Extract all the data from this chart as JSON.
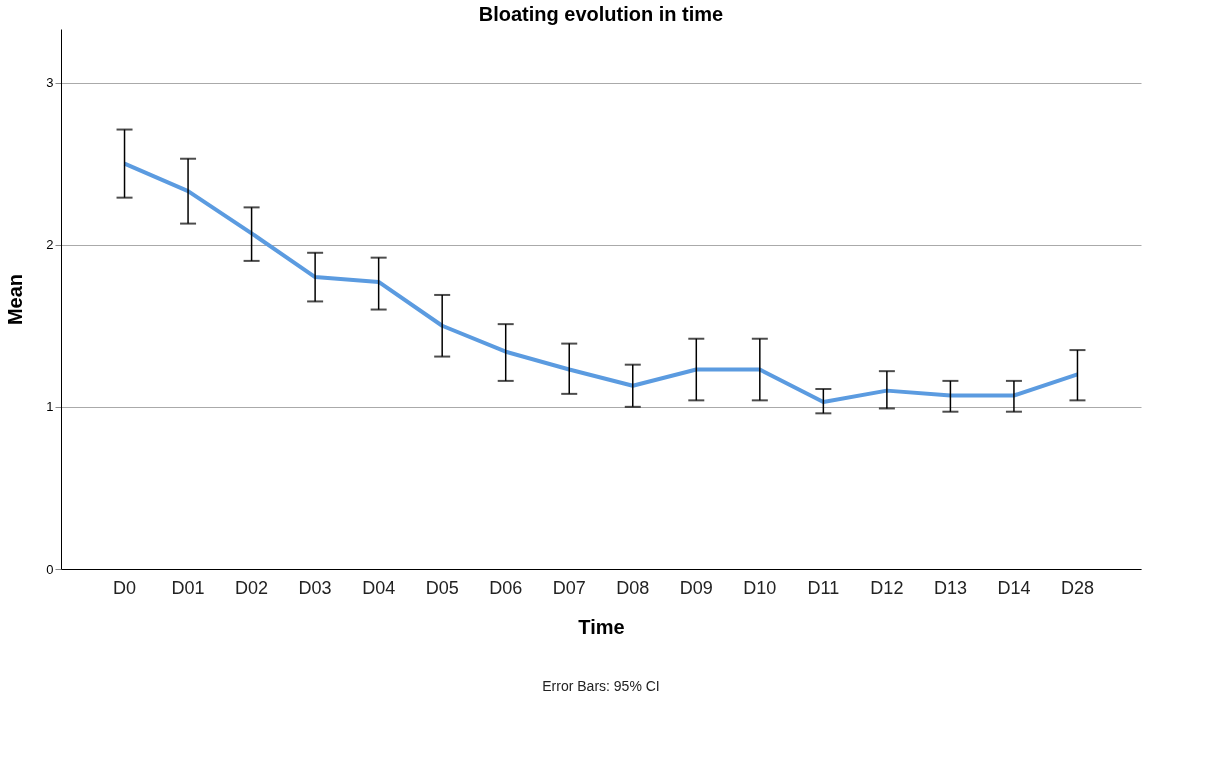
{
  "chart_data": {
    "type": "line",
    "title": "Bloating evolution in time",
    "xlabel": "Time",
    "ylabel": "Mean",
    "categories": [
      "D0",
      "D01",
      "D02",
      "D03",
      "D04",
      "D05",
      "D06",
      "D07",
      "D08",
      "D09",
      "D10",
      "D11",
      "D12",
      "D13",
      "D14",
      "D28"
    ],
    "series": [
      {
        "color": "#5b9be0",
        "values": [
          2.5,
          2.33,
          2.07,
          1.8,
          1.77,
          1.5,
          1.34,
          1.23,
          1.13,
          1.23,
          1.23,
          1.03,
          1.1,
          1.07,
          1.07,
          1.2
        ],
        "errors": [
          [
            2.29,
            2.71
          ],
          [
            2.13,
            2.53
          ],
          [
            1.9,
            2.23
          ],
          [
            1.65,
            1.95
          ],
          [
            1.6,
            1.92
          ],
          [
            1.31,
            1.69
          ],
          [
            1.16,
            1.51
          ],
          [
            1.08,
            1.39
          ],
          [
            1.0,
            1.26
          ],
          [
            1.04,
            1.42
          ],
          [
            1.04,
            1.42
          ],
          [
            0.96,
            1.11
          ],
          [
            0.99,
            1.22
          ],
          [
            0.97,
            1.16
          ],
          [
            0.97,
            1.16
          ],
          [
            1.04,
            1.35
          ]
        ]
      }
    ],
    "ylim": [
      0,
      3.33
    ],
    "yticks": [
      0,
      1,
      2,
      3
    ],
    "grid": "y",
    "marker": "none",
    "line_style": "solid",
    "annotations": [
      "Error Bars: 95% CI"
    ]
  }
}
